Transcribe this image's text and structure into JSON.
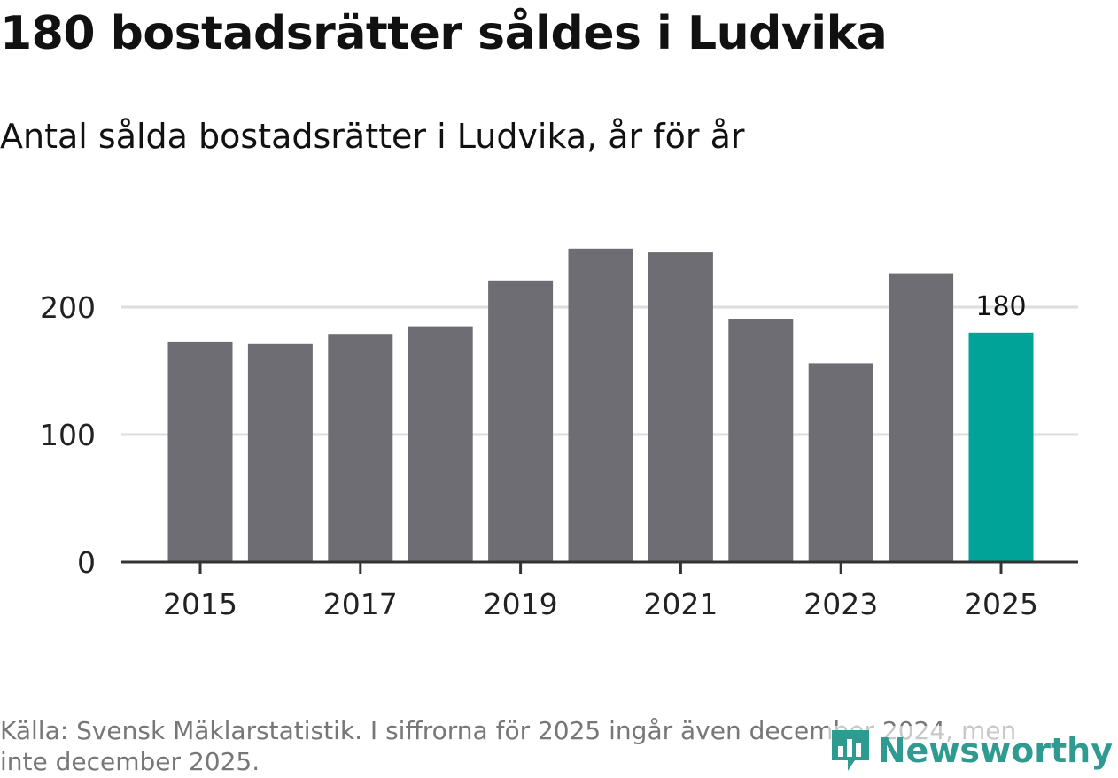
{
  "title": "180 bostadsrätter såldes i Ludvika",
  "subtitle": "Antal sålda bostadsrätter i Ludvika, år för år",
  "chart_data": {
    "type": "bar",
    "categories": [
      "2015",
      "2016",
      "2017",
      "2018",
      "2019",
      "2020",
      "2021",
      "2022",
      "2023",
      "2024",
      "2025"
    ],
    "values": [
      173,
      171,
      179,
      185,
      221,
      246,
      243,
      191,
      156,
      226,
      180
    ],
    "x_tick_labels": [
      "2015",
      "2017",
      "2019",
      "2021",
      "2023",
      "2025"
    ],
    "y_ticks": [
      0,
      100,
      200
    ],
    "ylim": [
      0,
      250
    ],
    "grid": true,
    "highlight_index": 10,
    "highlight_label": "180",
    "colors": {
      "bar": "#6e6d73",
      "highlight": "#00a398",
      "grid": "#dddddd",
      "axis": "#333333"
    }
  },
  "source": "Källa: Svensk Mäklarstatistik. I siffrorna för 2025 ingår även december 2024, men inte december 2025.",
  "brand": {
    "name": "Newsworthy",
    "icon": "newsworthy-logo-icon",
    "color": "#2f9a8f"
  }
}
